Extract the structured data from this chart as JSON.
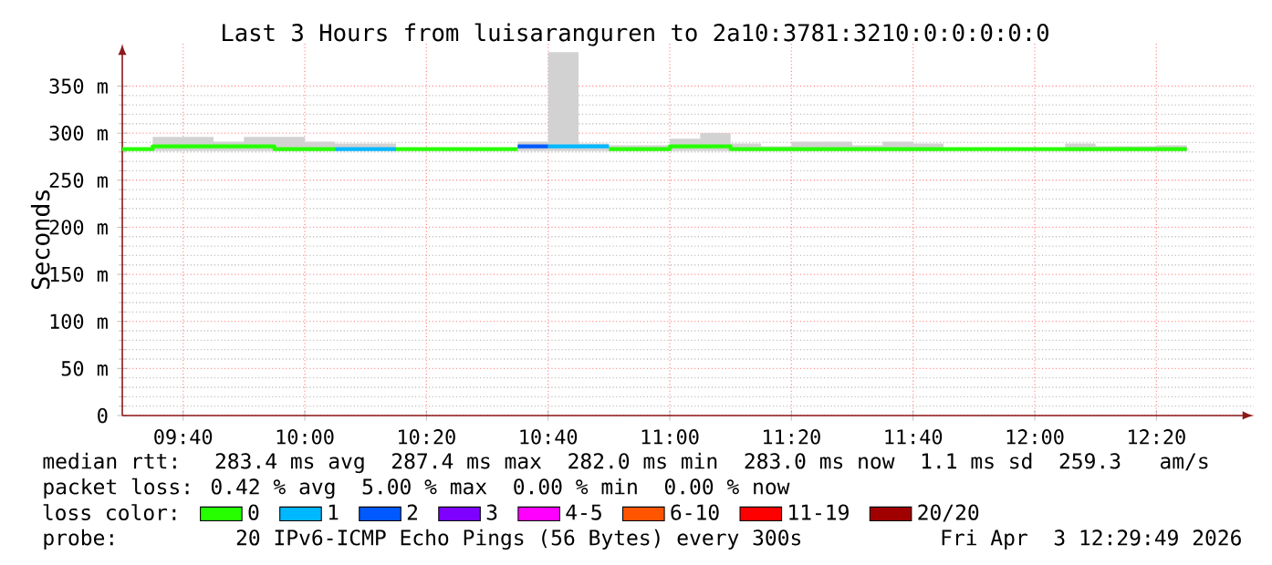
{
  "chart_data": {
    "type": "step",
    "title": "Last 3 Hours from luisaranguren to 2a10:3781:3210:0:0:0:0:0",
    "ylabel": "Seconds",
    "legend_title": "loss color:",
    "x": [
      9.5,
      9.5833,
      9.6667,
      9.75,
      9.8333,
      9.9167,
      10,
      10.0833,
      10.1667,
      10.25,
      10.3333,
      10.4167,
      10.5,
      10.5833,
      10.6667,
      10.75,
      10.8333,
      10.9167,
      11,
      11.0833,
      11.1667,
      11.25,
      11.3333,
      11.4167,
      11.5,
      11.5833,
      11.6667,
      11.75,
      11.8333,
      11.9167,
      12,
      12.0833,
      12.1667,
      12.25,
      12.3333,
      12.4167
    ],
    "series": [
      {
        "name": "0",
        "color": "#26ff00",
        "values": [
          283,
          286,
          286,
          286,
          286,
          283,
          283,
          null,
          null,
          283,
          283,
          283,
          283,
          null,
          null,
          null,
          283,
          283,
          286,
          286,
          283,
          283,
          283,
          283,
          283,
          283,
          283,
          283,
          283,
          283,
          283,
          283,
          283,
          283,
          283,
          283
        ],
        "lower": [
          null,
          281,
          281,
          281,
          281,
          281,
          281,
          281,
          281,
          null,
          null,
          null,
          null,
          281,
          281,
          281,
          281,
          281,
          281,
          281,
          281,
          281,
          281,
          281,
          281,
          281,
          281,
          null,
          null,
          null,
          null,
          281,
          281,
          281,
          281,
          281
        ],
        "upper": [
          null,
          296,
          296,
          291,
          296,
          296,
          291,
          289,
          289,
          null,
          null,
          null,
          null,
          291,
          386,
          289,
          287,
          287,
          294,
          300,
          289,
          286,
          291,
          291,
          287,
          291,
          289,
          null,
          null,
          null,
          null,
          289,
          286,
          286,
          287,
          287
        ]
      },
      {
        "name": "1",
        "color": "#00b8ff",
        "x": [
          10.0833,
          10.1667,
          10.25
        ],
        "values": [
          283,
          283,
          283
        ]
      },
      {
        "color": "#00b8ff",
        "x": [
          10.6667,
          10.75,
          10.8333
        ],
        "values": [
          286,
          286,
          286
        ]
      },
      {
        "name": "2",
        "color": "#0059ff",
        "x": [
          10.5833,
          10.6667
        ],
        "values": [
          286,
          286
        ]
      },
      {
        "name": "3",
        "color": "#7e00ff",
        "values": [
          null,
          null,
          null,
          null,
          null,
          null,
          null,
          null,
          null,
          null,
          null,
          null,
          null,
          null,
          null,
          null,
          null,
          null,
          null,
          null,
          null,
          null,
          null,
          null,
          null,
          null,
          null,
          null,
          null,
          null,
          null,
          null,
          null,
          null,
          null,
          null
        ]
      },
      {
        "name": "4-5",
        "color": "#ff00ff",
        "values": [
          null,
          null,
          null,
          null,
          null,
          null,
          null,
          null,
          null,
          null,
          null,
          null,
          null,
          null,
          null,
          null,
          null,
          null,
          null,
          null,
          null,
          null,
          null,
          null,
          null,
          null,
          null,
          null,
          null,
          null,
          null,
          null,
          null,
          null,
          null,
          null
        ]
      },
      {
        "name": "6-10",
        "color": "#ff5500",
        "values": [
          null,
          null,
          null,
          null,
          null,
          null,
          null,
          null,
          null,
          null,
          null,
          null,
          null,
          null,
          null,
          null,
          null,
          null,
          null,
          null,
          null,
          null,
          null,
          null,
          null,
          null,
          null,
          null,
          null,
          null,
          null,
          null,
          null,
          null,
          null,
          null
        ]
      },
      {
        "name": "11-19",
        "color": "#ff0000",
        "values": [
          null,
          null,
          null,
          null,
          null,
          null,
          null,
          null,
          null,
          null,
          null,
          null,
          null,
          null,
          null,
          null,
          null,
          null,
          null,
          null,
          null,
          null,
          null,
          null,
          null,
          null,
          null,
          null,
          null,
          null,
          null,
          null,
          null,
          null,
          null,
          null
        ]
      },
      {
        "name": "20/20",
        "color": "#a10000",
        "values": [
          null,
          null,
          null,
          null,
          null,
          null,
          null,
          null,
          null,
          null,
          null,
          null,
          null,
          null,
          null,
          null,
          null,
          null,
          null,
          null,
          null,
          null,
          null,
          null,
          null,
          null,
          null,
          null,
          null,
          null,
          null,
          null,
          null,
          null,
          null,
          null
        ]
      }
    ],
    "xlim": [
      9.5,
      12.6
    ],
    "xticks": [
      {
        "value": 9.6667,
        "label": "09:40"
      },
      {
        "value": 10,
        "label": "10:00"
      },
      {
        "value": 10.3333,
        "label": "10:20"
      },
      {
        "value": 10.6667,
        "label": "10:40"
      },
      {
        "value": 11,
        "label": "11:00"
      },
      {
        "value": 11.3333,
        "label": "11:20"
      },
      {
        "value": 11.6667,
        "label": "11:40"
      },
      {
        "value": 12,
        "label": "12:00"
      },
      {
        "value": 12.3333,
        "label": "12:20"
      }
    ],
    "ylim": [
      0,
      395
    ],
    "yticks": [
      0,
      {
        "value": 50,
        "label": "50 m"
      },
      {
        "value": 100,
        "label": "100 m"
      },
      {
        "value": 150,
        "label": "150 m"
      },
      {
        "value": 200,
        "label": "200 m"
      },
      {
        "value": 250,
        "label": "250 m"
      },
      {
        "value": 300,
        "label": "300 m"
      },
      {
        "value": 350,
        "label": "350 m"
      }
    ],
    "grid": true,
    "legend": "bottom",
    "annotations": [
      "median rtt:  283.4 ms avg  287.4 ms max  282.0 ms min  283.0 ms now  1.1 ms sd  259.3   am/s",
      "packet loss: 0.42 % avg  5.00 % max  0.00 % min  0.00 % now",
      "probe:       20 IPv6-ICMP Echo Pings (56 Bytes) every 300s",
      "Fri Apr  3 12:29:49 2026"
    ]
  }
}
